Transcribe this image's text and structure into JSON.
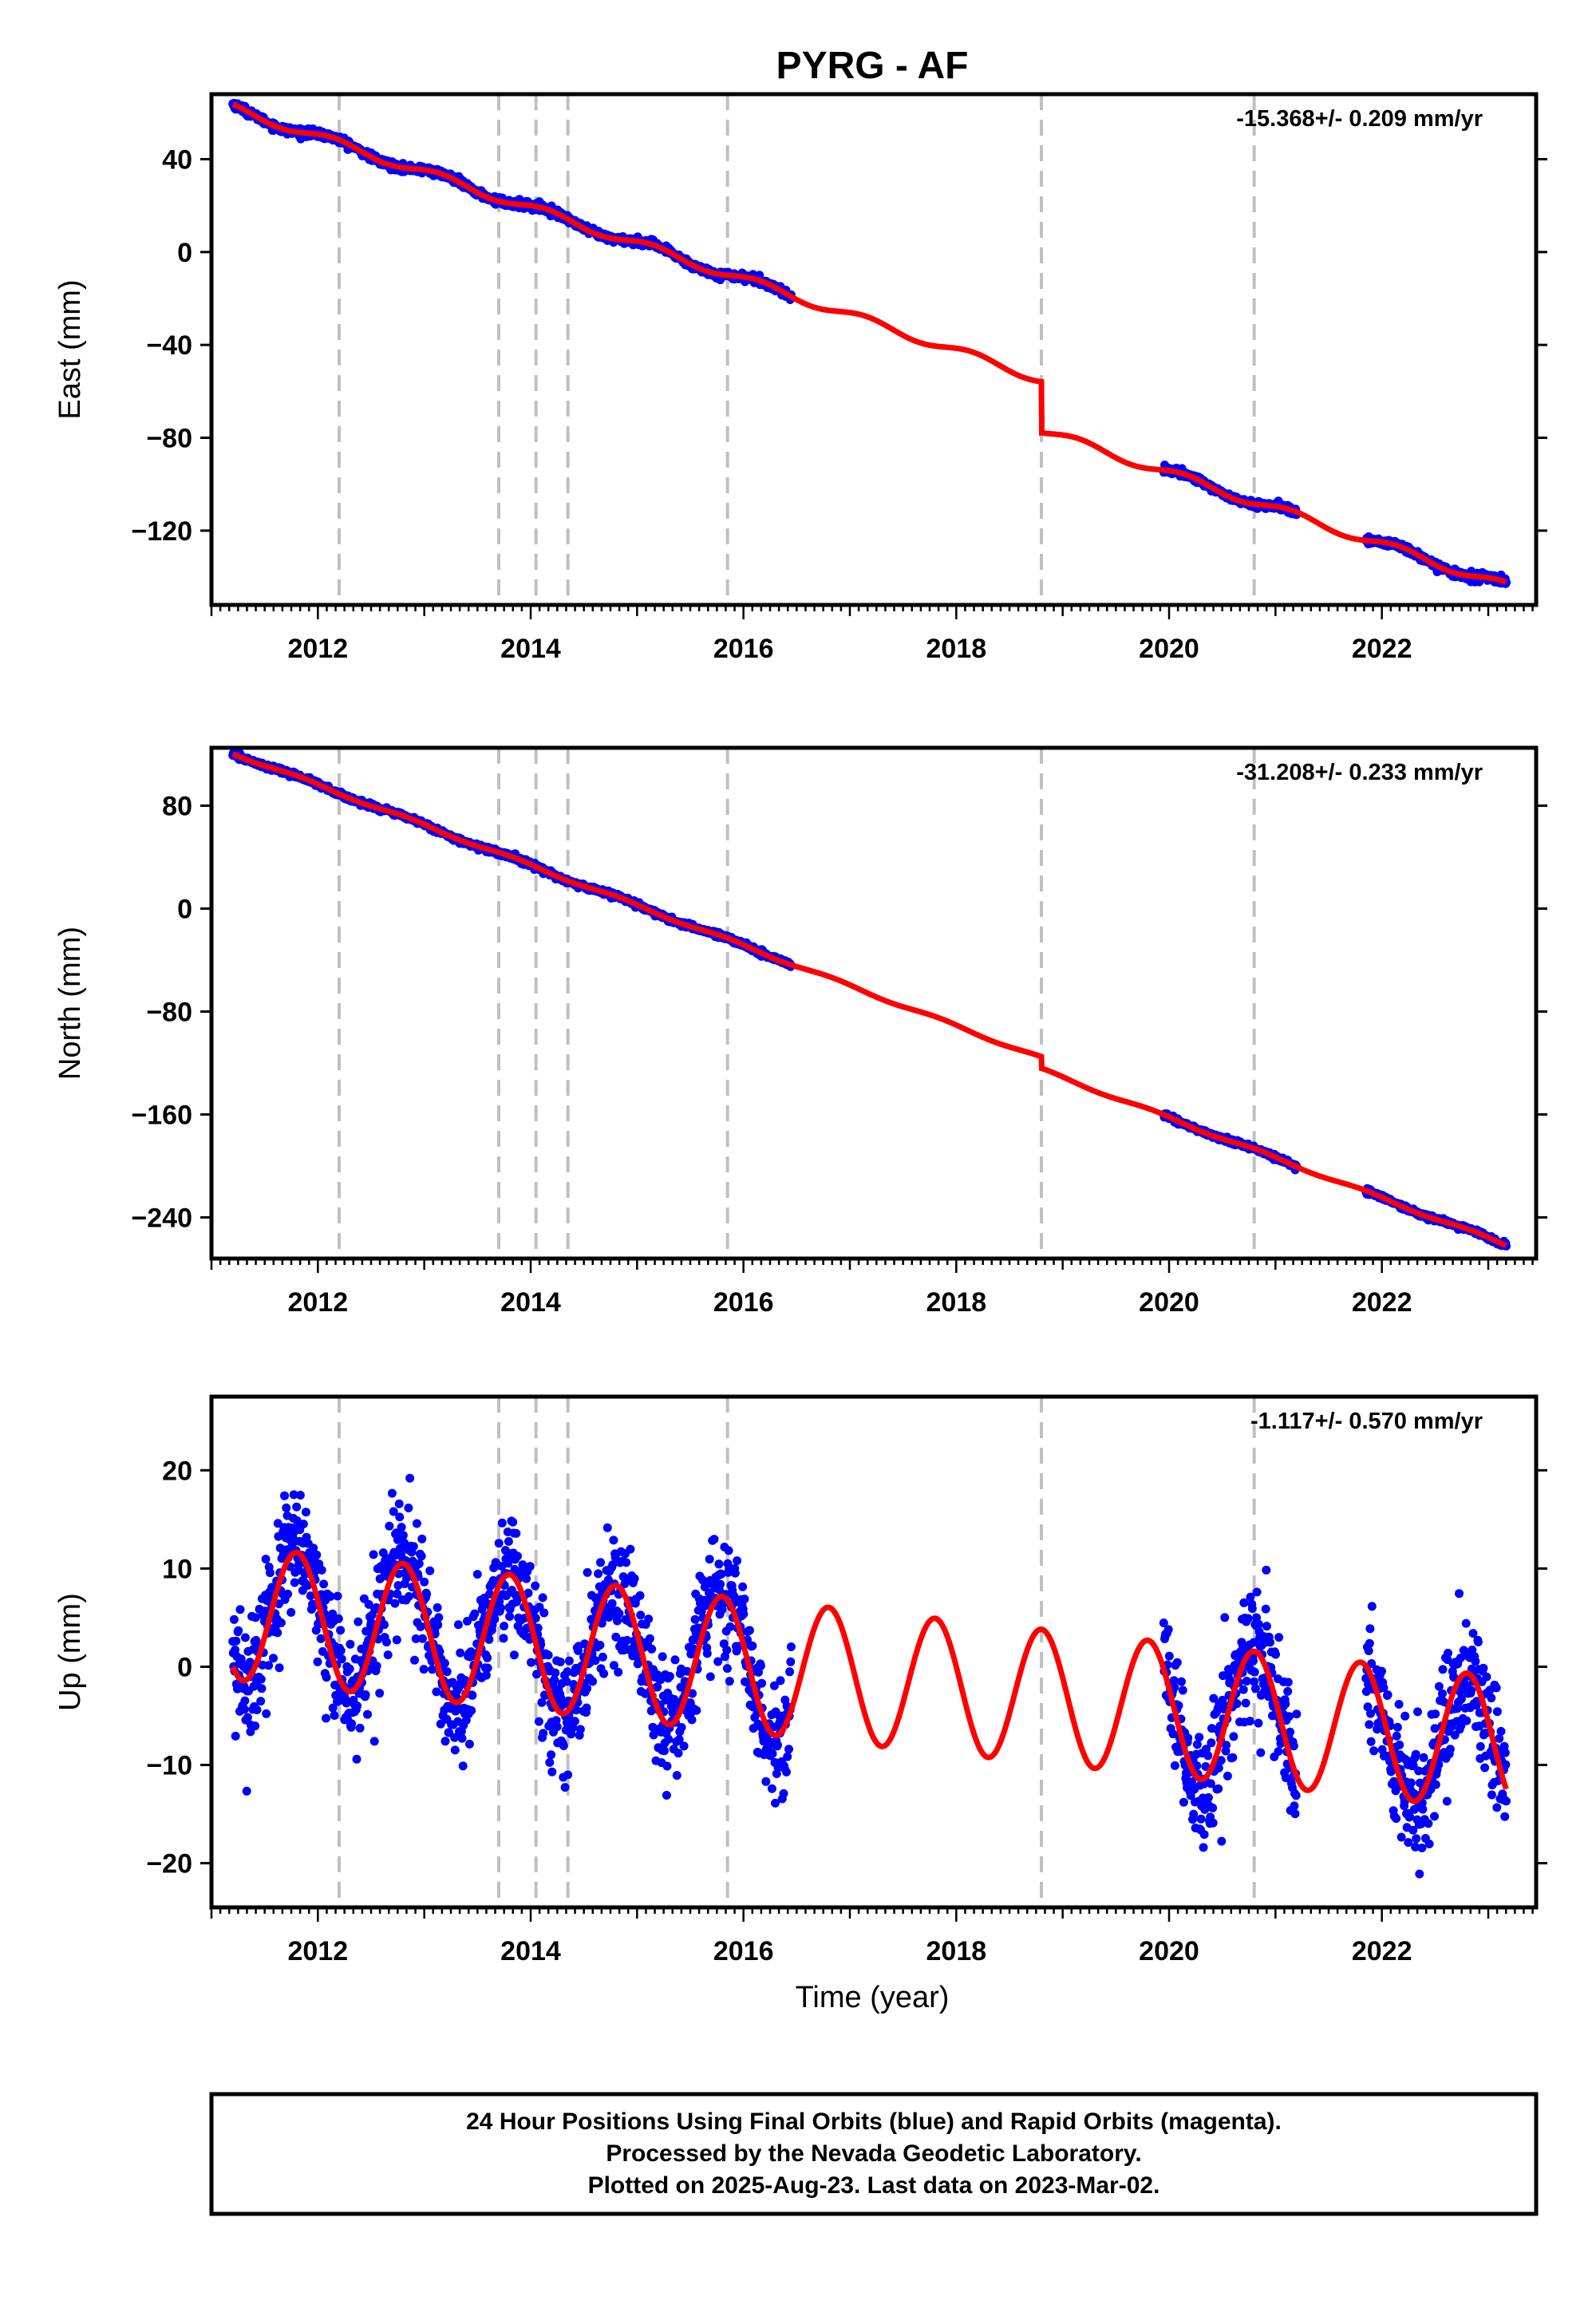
{
  "title": "PYRG - AF",
  "xlabel": "Time (year)",
  "footer_lines": [
    "24 Hour Positions Using Final Orbits (blue) and Rapid Orbits (magenta).",
    "Processed by the Nevada Geodetic Laboratory.",
    "Plotted on 2025-Aug-23. Last data on 2023-Mar-02."
  ],
  "colors": {
    "final_orbits": "#0000ff",
    "model": "#ff0000",
    "event_lines": "#c0c0c0",
    "frame": "#000000"
  },
  "chart_data": [
    {
      "type": "scatter",
      "component": "east",
      "ylabel": "East (mm)",
      "rate_text": "-15.368+/- 0.209 mm/yr",
      "xlim": [
        2011.0,
        2023.45
      ],
      "ylim": [
        -152,
        68
      ],
      "x_ticks": [
        2012,
        2014,
        2016,
        2018,
        2020,
        2022
      ],
      "y_ticks": [
        40,
        0,
        -40,
        -80,
        -120
      ],
      "y_tick_labels": [
        "40",
        "0",
        "−40",
        "−80",
        "−120"
      ],
      "event_lines": [
        2012.2,
        2013.7,
        2014.05,
        2014.35,
        2015.85,
        2018.8,
        2020.8
      ],
      "data_ranges": [
        [
          2011.2,
          2016.45
        ],
        [
          2019.95,
          2021.2
        ],
        [
          2021.85,
          2023.17
        ]
      ],
      "model": {
        "rate": -15.368,
        "offset_2011": 62,
        "annual_amp": 1.8,
        "annual_phase": 1.9,
        "jump_year": 2018.8,
        "jump_mm": -22,
        "noise": 0.8
      },
      "series": [
        {
          "name": "Final Orbits",
          "color": "#0000ff",
          "marker": "dot"
        },
        {
          "name": "Rapid Orbits",
          "color": "#ff00ff",
          "marker": "dot"
        }
      ]
    },
    {
      "type": "scatter",
      "component": "north",
      "ylabel": "North (mm)",
      "rate_text": "-31.208+/- 0.233 mm/yr",
      "xlim": [
        2011.0,
        2023.45
      ],
      "ylim": [
        -272,
        125
      ],
      "x_ticks": [
        2012,
        2014,
        2016,
        2018,
        2020,
        2022
      ],
      "y_ticks": [
        80,
        0,
        -80,
        -160,
        -240
      ],
      "y_tick_labels": [
        "80",
        "0",
        "−80",
        "−160",
        "−240"
      ],
      "event_lines": [
        2012.2,
        2013.7,
        2014.05,
        2014.35,
        2015.85,
        2018.8,
        2020.8
      ],
      "data_ranges": [
        [
          2011.2,
          2016.45
        ],
        [
          2019.95,
          2021.2
        ],
        [
          2021.85,
          2023.17
        ]
      ],
      "model": {
        "rate": -31.208,
        "offset_2011": 121,
        "annual_amp": 1.2,
        "annual_phase": 0.6,
        "jump_year": 2018.8,
        "jump_mm": -9,
        "noise": 1.0
      },
      "series": [
        {
          "name": "Final Orbits",
          "color": "#0000ff",
          "marker": "dot"
        },
        {
          "name": "Rapid Orbits",
          "color": "#ff00ff",
          "marker": "dot"
        }
      ]
    },
    {
      "type": "scatter",
      "component": "up",
      "ylabel": "Up (mm)",
      "rate_text": "-1.117+/- 0.570 mm/yr",
      "xlim": [
        2011.0,
        2023.45
      ],
      "ylim": [
        -24.5,
        27.5
      ],
      "x_ticks": [
        2012,
        2014,
        2016,
        2018,
        2020,
        2022
      ],
      "y_ticks": [
        20,
        10,
        0,
        -10,
        -20
      ],
      "y_tick_labels": [
        "20",
        "10",
        "0",
        "−10",
        "−20"
      ],
      "event_lines": [
        2012.2,
        2013.7,
        2014.05,
        2014.35,
        2015.85,
        2018.8,
        2020.8
      ],
      "data_ranges": [
        [
          2011.2,
          2016.45
        ],
        [
          2019.95,
          2021.2
        ],
        [
          2021.85,
          2023.17
        ]
      ],
      "model": {
        "rate": -1.117,
        "offset_2011": 5.5,
        "annual_amp": 6.8,
        "annual_phase": 0.55,
        "jump_year": 2018.8,
        "jump_mm": 0,
        "noise": 3.2
      },
      "series": [
        {
          "name": "Final Orbits",
          "color": "#0000ff",
          "marker": "dot"
        },
        {
          "name": "Rapid Orbits",
          "color": "#ff00ff",
          "marker": "dot"
        }
      ]
    }
  ]
}
